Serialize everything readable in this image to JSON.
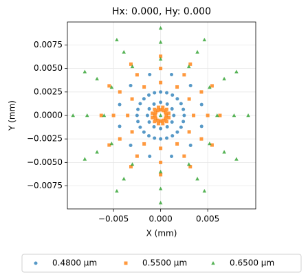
{
  "chart_data": {
    "type": "scatter",
    "title": "Hx: 0.000, Hy: 0.000",
    "x_label": "X (mm)",
    "y_label": "Y (mm)",
    "xlim": [
      -0.0099,
      0.0101
    ],
    "ylim": [
      -0.00995,
      0.00995
    ],
    "xticks": [
      {
        "value": -0.005,
        "label": "−0.005"
      },
      {
        "value": 0,
        "label": "0.000"
      },
      {
        "value": 0.005,
        "label": "0.005"
      }
    ],
    "yticks": [
      {
        "value": -0.0075,
        "label": "−0.0075"
      },
      {
        "value": -0.005,
        "label": "−0.0050"
      },
      {
        "value": -0.0025,
        "label": "−0.0025"
      },
      {
        "value": 0,
        "label": "0.0000"
      },
      {
        "value": 0.0025,
        "label": "0.0025"
      },
      {
        "value": 0.005,
        "label": "0.0050"
      },
      {
        "value": 0.0075,
        "label": "0.0075"
      }
    ],
    "grid": true,
    "legend": "bottom",
    "series": [
      {
        "name": "0.4800 µm",
        "color": "#1f77b4",
        "marker": "circle",
        "x": [
          0.0014,
          0.00121,
          0.0007,
          0,
          -0.0007,
          -0.00121,
          -0.0014,
          -0.00121,
          -0.0007,
          0,
          0.0007,
          0.00121,
          0.0025,
          0.00241,
          0.00217,
          0.00177,
          0.00125,
          0.00065,
          0,
          -0.00065,
          -0.00125,
          -0.00177,
          -0.00217,
          -0.00241,
          -0.0025,
          -0.00241,
          -0.00217,
          -0.00177,
          -0.00125,
          -0.00065,
          0,
          0.00065,
          0.00125,
          0.00177,
          0.00217,
          0.00241,
          0.00435,
          0.00318,
          0.00116,
          -0.00116,
          -0.00318,
          -0.00435,
          -0.00435,
          -0.00318,
          -0.00116,
          0.00116,
          0.00318,
          0.00435
        ],
        "y": [
          0,
          0.0007,
          0.00121,
          0.0014,
          0.00121,
          0.0007,
          0,
          -0.0007,
          -0.00121,
          -0.0014,
          -0.00121,
          -0.0007,
          0,
          0.00065,
          0.00125,
          0.00177,
          0.00217,
          0.00241,
          0.0025,
          0.00241,
          0.00217,
          0.00177,
          0.00125,
          0.00065,
          0,
          -0.00065,
          -0.00125,
          -0.00177,
          -0.00217,
          -0.00241,
          -0.0025,
          -0.00241,
          -0.00217,
          -0.00177,
          -0.00125,
          -0.00065,
          0.00116,
          0.00318,
          0.00435,
          0.00435,
          0.00318,
          0.00116,
          -0.00116,
          -0.00318,
          -0.00435,
          -0.00435,
          -0.00318,
          -0.00116
        ]
      },
      {
        "name": "0.5500 µm",
        "color": "#ff7f0e",
        "marker": "square",
        "x": [
          0.0006,
          0.00052,
          0.0003,
          0,
          -0.0003,
          -0.00052,
          -0.0006,
          -0.00052,
          -0.0003,
          0,
          0.0003,
          0.00052,
          0.00087,
          0.00064,
          0.00023,
          -0.00023,
          -0.00064,
          -0.00087,
          -0.00087,
          -0.00064,
          -0.00023,
          0.00023,
          0.00064,
          0.00087,
          0.0035,
          0.00303,
          0.00175,
          0,
          -0.00175,
          -0.00303,
          -0.0035,
          -0.00303,
          -0.00175,
          0,
          0.00175,
          0.00303,
          0.005,
          0.00433,
          0.0025,
          0,
          -0.0025,
          -0.00433,
          -0.005,
          -0.00433,
          -0.0025,
          0,
          0.0025,
          0.00433,
          0.0063,
          0.00546,
          0.00315,
          0,
          -0.00315,
          -0.00546,
          -0.0063,
          -0.00546,
          -0.00315,
          0,
          0.00315,
          0.00546
        ],
        "y": [
          0,
          0.0003,
          0.00052,
          0.0006,
          0.00052,
          0.0003,
          0,
          -0.0003,
          -0.00052,
          -0.0006,
          -0.00052,
          -0.0003,
          0.00023,
          0.00064,
          0.00087,
          0.00087,
          0.00064,
          0.00023,
          -0.00023,
          -0.00064,
          -0.00087,
          -0.00087,
          -0.00064,
          -0.00023,
          0,
          0.00175,
          0.00303,
          0.0035,
          0.00303,
          0.00175,
          0,
          -0.00175,
          -0.00303,
          -0.0035,
          -0.00303,
          -0.00175,
          0,
          0.0025,
          0.00433,
          0.005,
          0.00433,
          0.0025,
          0,
          -0.0025,
          -0.00433,
          -0.005,
          -0.00433,
          -0.0025,
          0,
          0.00315,
          0.00546,
          0.0063,
          0.00546,
          0.00315,
          0,
          -0.00315,
          -0.00546,
          -0.0063,
          -0.00546,
          -0.00315
        ]
      },
      {
        "name": "0.6500 µm",
        "color": "#2ca02c",
        "marker": "triangle",
        "x": [
          0,
          0.006,
          0.0052,
          0.003,
          0,
          -0.003,
          -0.0052,
          -0.006,
          -0.0052,
          -0.003,
          0,
          0.003,
          0.0052,
          0.0078,
          0.00675,
          0.0039,
          0,
          -0.0039,
          -0.00675,
          -0.0078,
          -0.00675,
          -0.0039,
          0,
          0.0039,
          0.00675,
          0.0093,
          0.00805,
          0.00465,
          0,
          -0.00465,
          -0.00805,
          -0.0093,
          -0.00805,
          -0.00465,
          0,
          0.00465,
          0.00805
        ],
        "y": [
          0,
          0,
          0.003,
          0.0052,
          0.006,
          0.0052,
          0.003,
          0,
          -0.003,
          -0.0052,
          -0.006,
          -0.0052,
          -0.003,
          0,
          0.0039,
          0.00675,
          0.0078,
          0.00675,
          0.0039,
          0,
          -0.0039,
          -0.00675,
          -0.0078,
          -0.00675,
          -0.0039,
          0,
          0.00465,
          0.00805,
          0.0093,
          0.00805,
          0.00465,
          0,
          -0.00465,
          -0.00805,
          -0.0093,
          -0.00805,
          -0.00465
        ]
      }
    ]
  }
}
